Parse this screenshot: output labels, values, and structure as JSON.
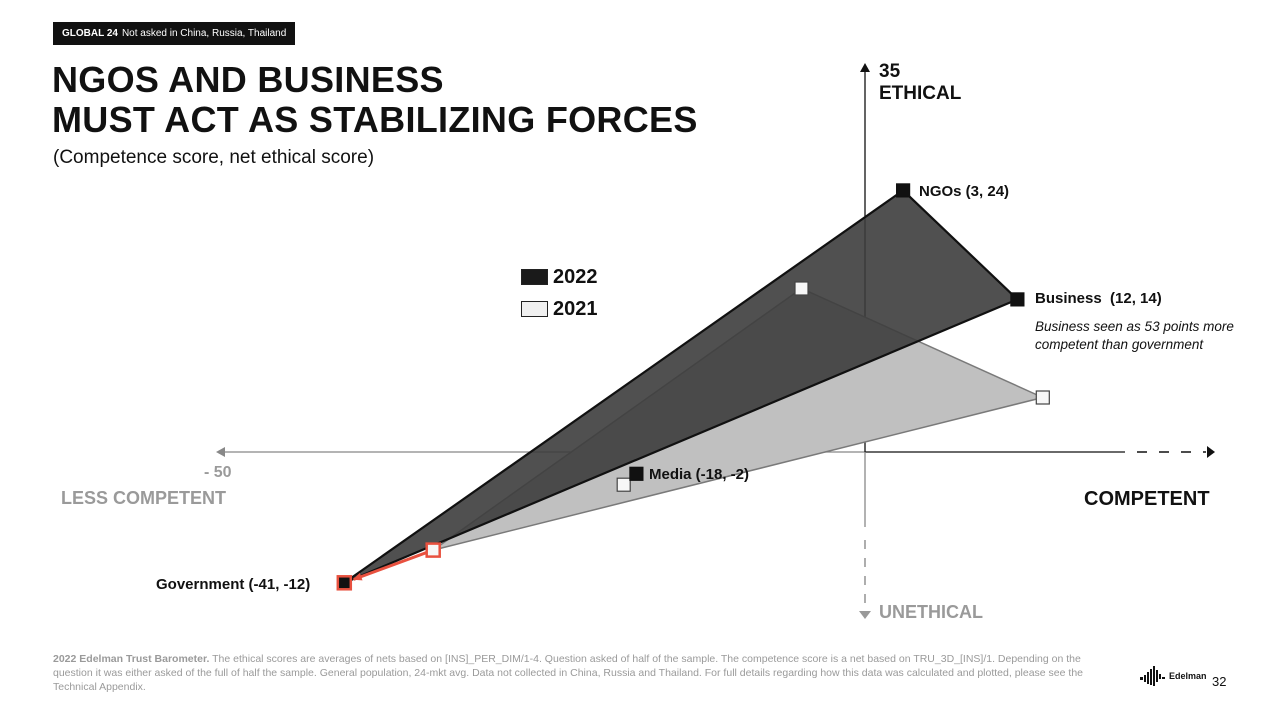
{
  "tag": {
    "bold": "GLOBAL 24",
    "text": "Not asked in China, Russia, Thailand"
  },
  "title": {
    "line1": "NGOS AND BUSINESS",
    "line2": "MUST ACT AS STABILIZING FORCES"
  },
  "subtitle": "(Competence score, net ethical score)",
  "chart_data": {
    "type": "scatter",
    "xlabel_positive": "COMPETENT",
    "xlabel_negative": "LESS COMPETENT",
    "x_min_label": "- 50",
    "ylabel_positive": "ETHICAL",
    "ylabel_negative": "UNETHICAL",
    "y_max_label": "35",
    "legend": [
      {
        "label": "2022",
        "color": "#1a1a1a"
      },
      {
        "label": "2021",
        "color": "#f0f0f0"
      }
    ],
    "series": [
      {
        "name": "2022",
        "fill": "#3d3d3d",
        "points": [
          {
            "name": "Government",
            "x": -41,
            "y": -12,
            "label": "Government (-41, -12)"
          },
          {
            "name": "NGOs",
            "x": 3,
            "y": 24,
            "label": "NGOs (3, 24)"
          },
          {
            "name": "Business",
            "x": 12,
            "y": 14,
            "label": "Business  (12, 14)"
          },
          {
            "name": "Media",
            "x": -18,
            "y": -2,
            "label": "Media (-18, -2)"
          }
        ]
      },
      {
        "name": "2021",
        "fill": "#c0c0c0",
        "points": [
          {
            "name": "Government",
            "x": -34,
            "y": -9
          },
          {
            "name": "NGOs",
            "x": -5,
            "y": 15
          },
          {
            "name": "Business",
            "x": 14,
            "y": 5
          },
          {
            "name": "Media",
            "x": -19,
            "y": -3
          }
        ]
      }
    ],
    "annotation": "Business seen as 53 points more competent than government",
    "highlight_color": "#e8513f"
  },
  "footnote": {
    "bold": "2022 Edelman Trust Barometer.",
    "text": "The ethical scores are averages of nets based on [INS]_PER_DIM/1-4. Question asked of half of the sample. The competence score is a net based on TRU_3D_[INS]/1. Depending on the question it was either asked of the full of half the sample. General population, 24-mkt avg. Data not collected in China, Russia and Thailand. For full details regarding how this data was calculated and plotted, please see the Technical Appendix."
  },
  "logo_text": "Edelman",
  "page_number": "32"
}
